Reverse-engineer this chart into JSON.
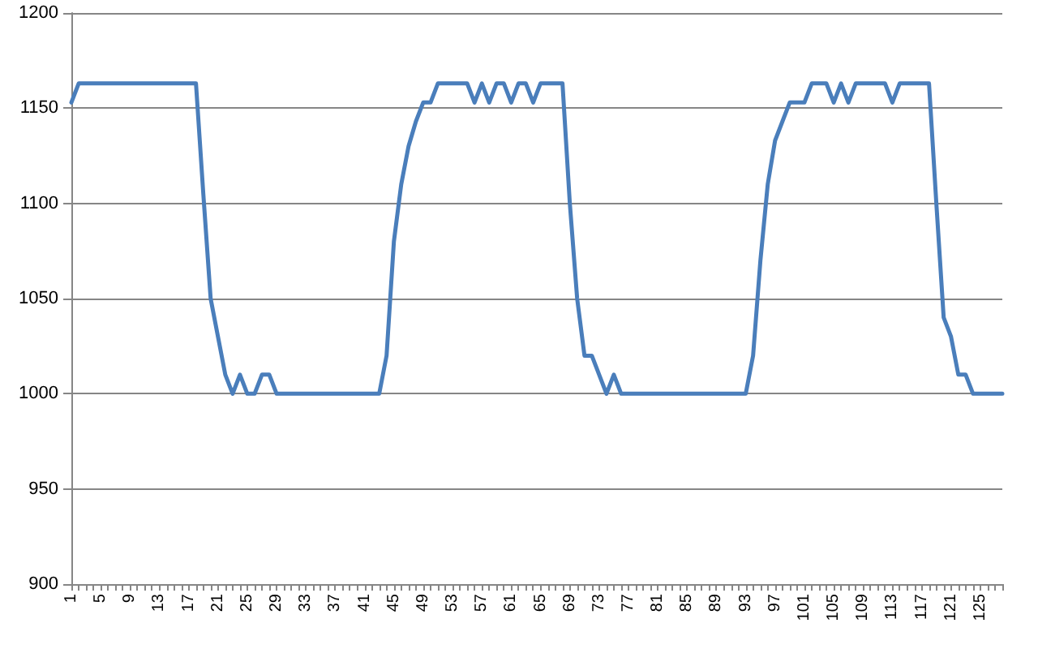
{
  "chart_data": {
    "type": "line",
    "categories": [
      "1",
      null,
      null,
      null,
      "5",
      null,
      null,
      null,
      "9",
      null,
      null,
      null,
      "13",
      null,
      null,
      null,
      "17",
      null,
      null,
      null,
      "21",
      null,
      null,
      null,
      "25",
      null,
      null,
      null,
      "29",
      null,
      null,
      null,
      "33",
      null,
      null,
      null,
      "37",
      null,
      null,
      null,
      "41",
      null,
      null,
      null,
      "45",
      null,
      null,
      null,
      "49",
      null,
      null,
      null,
      "53",
      null,
      null,
      null,
      "57",
      null,
      null,
      null,
      "61",
      null,
      null,
      null,
      "65",
      null,
      null,
      null,
      "69",
      null,
      null,
      null,
      "73",
      null,
      null,
      null,
      "77",
      null,
      null,
      null,
      "81",
      null,
      null,
      null,
      "85",
      null,
      null,
      null,
      "89",
      null,
      null,
      null,
      "93",
      null,
      null,
      null,
      "97",
      null,
      null,
      null,
      "101",
      null,
      null,
      null,
      "105",
      null,
      null,
      null,
      "109",
      null,
      null,
      null,
      "113",
      null,
      null,
      null,
      "117",
      null,
      null,
      null,
      "121",
      null,
      null,
      null,
      "125",
      null,
      null,
      null
    ],
    "series": [
      {
        "color": "#4a7ebb",
        "values": [
          1153,
          1163,
          1163,
          1163,
          1163,
          1163,
          1163,
          1163,
          1163,
          1163,
          1163,
          1163,
          1163,
          1163,
          1163,
          1163,
          1163,
          1163,
          1105,
          1050,
          1030,
          1010,
          1000,
          1010,
          1000,
          1000,
          1010,
          1010,
          1000,
          1000,
          1000,
          1000,
          1000,
          1000,
          1000,
          1000,
          1000,
          1000,
          1000,
          1000,
          1000,
          1000,
          1000,
          1020,
          1080,
          1110,
          1130,
          1143,
          1153,
          1153,
          1163,
          1163,
          1163,
          1163,
          1163,
          1153,
          1163,
          1153,
          1163,
          1163,
          1153,
          1163,
          1163,
          1153,
          1163,
          1163,
          1163,
          1163,
          1100,
          1050,
          1020,
          1020,
          1010,
          1000,
          1010,
          1000,
          1000,
          1000,
          1000,
          1000,
          1000,
          1000,
          1000,
          1000,
          1000,
          1000,
          1000,
          1000,
          1000,
          1000,
          1000,
          1000,
          1000,
          1020,
          1070,
          1110,
          1133,
          1143,
          1153,
          1153,
          1153,
          1163,
          1163,
          1163,
          1153,
          1163,
          1153,
          1163,
          1163,
          1163,
          1163,
          1163,
          1153,
          1163,
          1163,
          1163,
          1163,
          1163,
          1100,
          1040,
          1030,
          1010,
          1010,
          1000,
          1000,
          1000,
          1000,
          1000
        ]
      }
    ],
    "ylim": [
      900,
      1200
    ],
    "yticks": [
      900,
      950,
      1000,
      1050,
      1100,
      1150,
      1200
    ],
    "grid": "y",
    "marker": "none",
    "line_style": "solid"
  }
}
